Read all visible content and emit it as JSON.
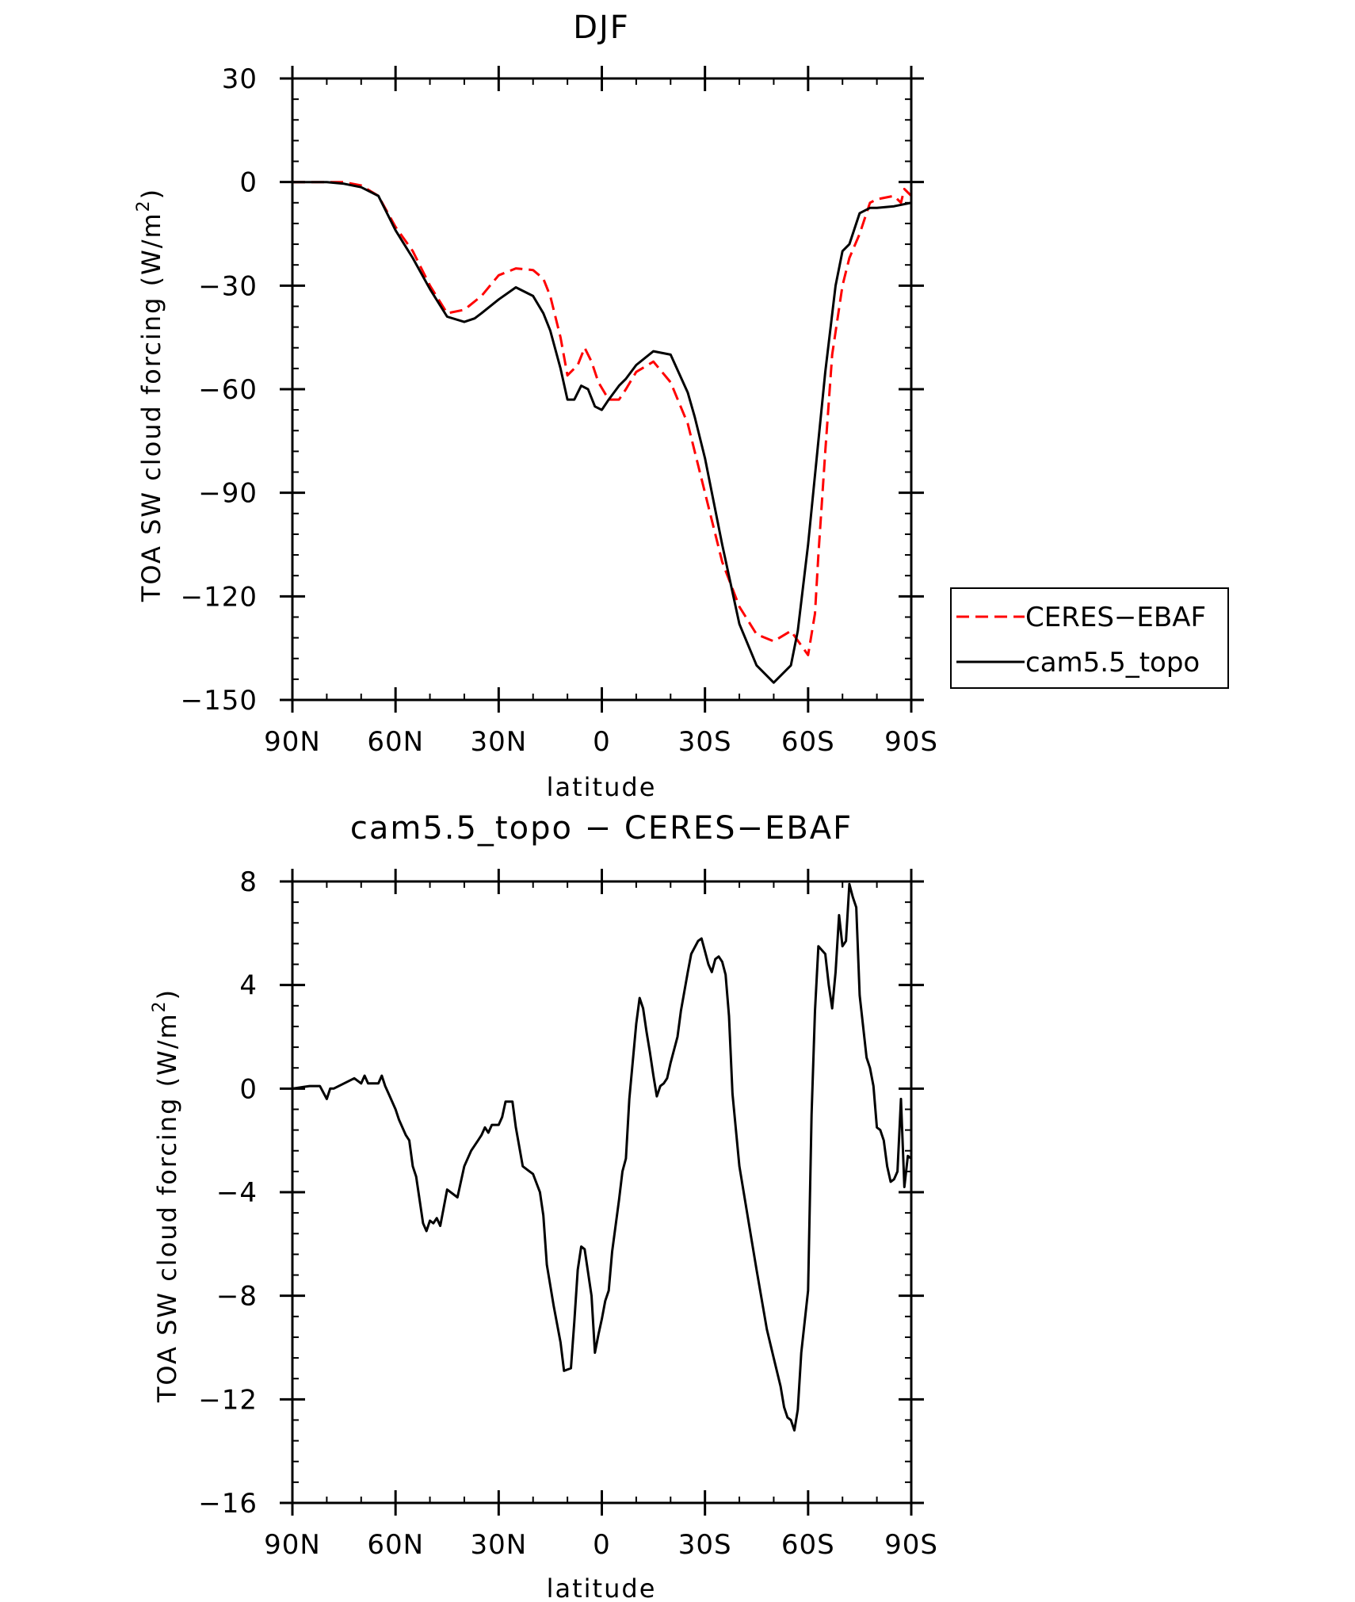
{
  "chart_data": [
    {
      "type": "line",
      "title": "DJF",
      "xlabel": "latitude",
      "ylabel": "TOA SW cloud forcing (W/m",
      "ylabel_sup": "2",
      "ylabel_close": ")",
      "xlim": [
        90,
        -90
      ],
      "ylim": [
        -150,
        30
      ],
      "xticks": [
        90,
        60,
        30,
        0,
        -30,
        -60,
        -90
      ],
      "xticklabels": [
        "90N",
        "60N",
        "30N",
        "0",
        "30S",
        "60S",
        "90S"
      ],
      "yticks": [
        30,
        0,
        -30,
        -60,
        -90,
        -120,
        -150
      ],
      "yticklabels": [
        "30",
        "0",
        "−30",
        "−60",
        "−90",
        "−120",
        "−150"
      ],
      "legend": {
        "position": "right",
        "entries": [
          "CERES−EBAF",
          "cam5.5_topo"
        ]
      },
      "series": [
        {
          "name": "CERES−EBAF",
          "color": "#ff0000",
          "dash": "dashed",
          "x": [
            90,
            85,
            80,
            75,
            70,
            65,
            60,
            55,
            50,
            45,
            40,
            35,
            30,
            25,
            20,
            17,
            15,
            12,
            10,
            7,
            5,
            3,
            1,
            -2,
            -5,
            -7,
            -10,
            -15,
            -20,
            -25,
            -30,
            -35,
            -40,
            -45,
            -50,
            -55,
            -60,
            -62,
            -63,
            -65,
            -67,
            -70,
            -72,
            -75,
            -78,
            -80,
            -85,
            -87,
            -88,
            -90
          ],
          "y": [
            0,
            0,
            0,
            0,
            -1,
            -4,
            -13,
            -20,
            -30,
            -38,
            -37,
            -33,
            -27,
            -25,
            -25.5,
            -28,
            -33,
            -45,
            -56,
            -53,
            -48,
            -52,
            -58,
            -63,
            -63,
            -60,
            -55,
            -52,
            -58,
            -70,
            -90,
            -110,
            -123,
            -131,
            -133,
            -130,
            -137,
            -125,
            -108,
            -78,
            -50,
            -30,
            -22,
            -15,
            -6,
            -5,
            -4,
            -6,
            -2,
            -4
          ]
        },
        {
          "name": "cam5.5_topo",
          "color": "#000000",
          "dash": "solid",
          "x": [
            90,
            85,
            80,
            75,
            70,
            65,
            60,
            55,
            50,
            45,
            40,
            37,
            35,
            30,
            25,
            20,
            17,
            15,
            12,
            10,
            8,
            6,
            4,
            2,
            0,
            -2,
            -5,
            -7,
            -10,
            -15,
            -20,
            -25,
            -27,
            -30,
            -35,
            -40,
            -45,
            -50,
            -55,
            -57,
            -60,
            -63,
            -65,
            -68,
            -70,
            -72,
            -75,
            -78,
            -80,
            -85,
            -90
          ],
          "y": [
            0,
            0,
            0,
            -0.5,
            -1.5,
            -4,
            -14,
            -22,
            -31,
            -39,
            -40.5,
            -39.5,
            -38,
            -34,
            -30.5,
            -33,
            -38,
            -43,
            -54,
            -63,
            -63,
            -59,
            -60,
            -65,
            -66,
            -63,
            -59,
            -57,
            -53,
            -49,
            -50,
            -61,
            -68,
            -80,
            -105,
            -128,
            -140,
            -145,
            -140,
            -130,
            -105,
            -75,
            -55,
            -30,
            -20,
            -18,
            -9,
            -7.5,
            -7.5,
            -7,
            -6
          ]
        }
      ]
    },
    {
      "type": "line",
      "title": "cam5.5_topo − CERES−EBAF",
      "xlabel": "latitude",
      "ylabel": "TOA SW cloud forcing (W/m",
      "ylabel_sup": "2",
      "ylabel_close": ")",
      "xlim": [
        90,
        -90
      ],
      "ylim": [
        -16,
        8
      ],
      "xticks": [
        90,
        60,
        30,
        0,
        -30,
        -60,
        -90
      ],
      "xticklabels": [
        "90N",
        "60N",
        "30N",
        "0",
        "30S",
        "60S",
        "90S"
      ],
      "yticks": [
        8,
        4,
        0,
        -4,
        -8,
        -12,
        -16
      ],
      "yticklabels": [
        "8",
        "4",
        "0",
        "−4",
        "−8",
        "−12",
        "−16"
      ],
      "series": [
        {
          "name": "cam5.5_topo − CERES−EBAF",
          "color": "#000000",
          "dash": "solid",
          "x": [
            90,
            85,
            82,
            80,
            79,
            78,
            75,
            72,
            70,
            69,
            68,
            65,
            64,
            63,
            62,
            60,
            59,
            57,
            56,
            55,
            54,
            52,
            51,
            50,
            49,
            48,
            47,
            45,
            42,
            40,
            38,
            36,
            35,
            34,
            33,
            32,
            30,
            29,
            28,
            26,
            25,
            23,
            21,
            20,
            18,
            17,
            16,
            14,
            12,
            11,
            9,
            8,
            7,
            6,
            5,
            3,
            2,
            1,
            0,
            -1,
            -2,
            -3,
            -5,
            -6,
            -7,
            -8,
            -10,
            -11,
            -12,
            -13,
            -14,
            -15,
            -16,
            -17,
            -18,
            -19,
            -20,
            -22,
            -23,
            -25,
            -26,
            -28,
            -29,
            -30,
            -31,
            -32,
            -33,
            -34,
            -35,
            -36,
            -37,
            -38,
            -40,
            -43,
            -45,
            -48,
            -50,
            -52,
            -53,
            -54,
            -55,
            -56,
            -57,
            -58,
            -60,
            -61,
            -62,
            -63,
            -65,
            -66,
            -67,
            -68,
            -69,
            -70,
            -71,
            -72,
            -73,
            -74,
            -75,
            -77,
            -78,
            -79,
            -80,
            -81,
            -82,
            -83,
            -84,
            -85,
            -86,
            -87,
            -88,
            -89,
            -90
          ],
          "y": [
            0,
            0.1,
            0.1,
            -0.4,
            0,
            0,
            0.2,
            0.4,
            0.2,
            0.5,
            0.2,
            0.2,
            0.5,
            0.1,
            -0.2,
            -0.8,
            -1.2,
            -1.8,
            -2,
            -3,
            -3.4,
            -5.2,
            -5.5,
            -5.1,
            -5.2,
            -5.0,
            -5.3,
            -3.9,
            -4.2,
            -3,
            -2.4,
            -2.0,
            -1.8,
            -1.5,
            -1.7,
            -1.4,
            -1.4,
            -1.1,
            -0.5,
            -0.5,
            -1.5,
            -3.0,
            -3.2,
            -3.3,
            -4.0,
            -4.9,
            -6.8,
            -8.4,
            -9.8,
            -10.9,
            -10.8,
            -9,
            -7,
            -6.1,
            -6.2,
            -8.0,
            -10.2,
            -9.5,
            -8.9,
            -8.2,
            -7.8,
            -6.3,
            -4.3,
            -3.2,
            -2.7,
            -0.4,
            2.5,
            3.5,
            3.1,
            2.2,
            1.4,
            0.5,
            -0.3,
            0.1,
            0.2,
            0.4,
            1.0,
            2.0,
            3.0,
            4.5,
            5.2,
            5.7,
            5.8,
            5.3,
            4.8,
            4.5,
            5.0,
            5.1,
            4.9,
            4.4,
            2.8,
            -0.2,
            -3.0,
            -5.4,
            -7.0,
            -9.3,
            -10.4,
            -11.5,
            -12.3,
            -12.7,
            -12.8,
            -13.2,
            -12.4,
            -10.2,
            -7.8,
            -1.0,
            3.0,
            5.5,
            5.2,
            4.0,
            3.1,
            4.5,
            6.7,
            5.5,
            5.7,
            7.9,
            7.4,
            7.0,
            3.6,
            1.2,
            0.8,
            0.1,
            -1.5,
            -1.6,
            -2.0,
            -3.0,
            -3.6,
            -3.5,
            -3.2,
            -0.4,
            -3.8,
            -2.6,
            -2.7
          ]
        }
      ]
    }
  ]
}
